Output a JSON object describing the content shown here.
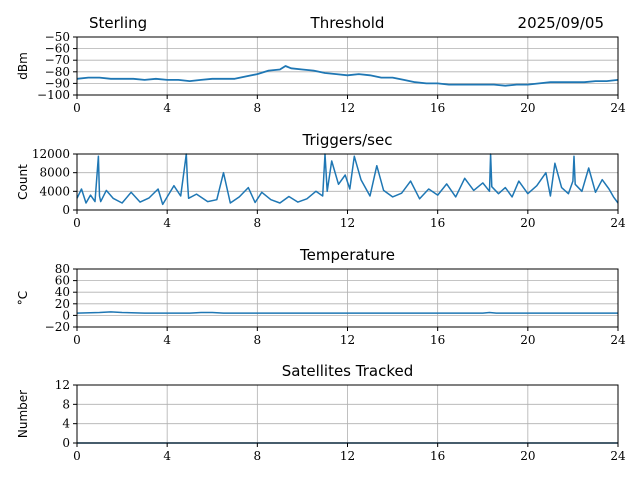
{
  "header": {
    "station": "Sterling",
    "date": "2025/09/05"
  },
  "colors": {
    "series": "#1f77b4",
    "grid": "#b0b0b0",
    "axis": "#000000"
  },
  "chart_data": [
    {
      "type": "line",
      "title": "Threshold",
      "ylabel": "dBm",
      "xlabel": "",
      "xlim": [
        0,
        24
      ],
      "ylim": [
        -100,
        -50
      ],
      "xticks": [
        0,
        4,
        8,
        12,
        16,
        20,
        24
      ],
      "yticks": [
        -100,
        -90,
        -80,
        -70,
        -60,
        -50
      ],
      "ytick_labels": [
        "−100",
        "−90",
        "−80",
        "−70",
        "−60",
        "−50"
      ],
      "grid": true,
      "series": [
        {
          "x": [
            0,
            0.5,
            1,
            1.5,
            2,
            2.5,
            3,
            3.5,
            4,
            4.5,
            5,
            5.5,
            6,
            6.5,
            7,
            7.5,
            8,
            8.5,
            9,
            9.25,
            9.5,
            10,
            10.5,
            11,
            11.5,
            12,
            12.5,
            13,
            13.5,
            14,
            14.5,
            15,
            15.5,
            16,
            16.5,
            17,
            17.5,
            18,
            18.5,
            19,
            19.5,
            20,
            20.5,
            21,
            21.5,
            22,
            22.5,
            23,
            23.5,
            24
          ],
          "y": [
            -86,
            -85,
            -85,
            -86,
            -86,
            -86,
            -87,
            -86,
            -87,
            -87,
            -88,
            -87,
            -86,
            -86,
            -86,
            -84,
            -82,
            -79,
            -78,
            -75,
            -77,
            -78,
            -79,
            -81,
            -82,
            -83,
            -82,
            -83,
            -85,
            -85,
            -87,
            -89,
            -90,
            -90,
            -91,
            -91,
            -91,
            -91,
            -91,
            -92,
            -91,
            -91,
            -90,
            -89,
            -89,
            -89,
            -89,
            -88,
            -88,
            -87
          ]
        }
      ]
    },
    {
      "type": "line",
      "title": "Triggers/sec",
      "ylabel": "Count",
      "xlabel": "",
      "xlim": [
        0,
        24
      ],
      "ylim": [
        0,
        12000
      ],
      "xticks": [
        0,
        4,
        8,
        12,
        16,
        20,
        24
      ],
      "yticks": [
        0,
        4000,
        8000,
        12000
      ],
      "ytick_labels": [
        "0",
        "4000",
        "8000",
        "12000"
      ],
      "grid": true,
      "series": [
        {
          "x": [
            0,
            0.2,
            0.4,
            0.6,
            0.8,
            0.95,
            1.0,
            1.05,
            1.3,
            1.6,
            2.0,
            2.4,
            2.8,
            3.2,
            3.6,
            3.8,
            4.0,
            4.3,
            4.6,
            4.85,
            4.9,
            4.95,
            5.3,
            5.8,
            6.2,
            6.5,
            6.8,
            7.2,
            7.6,
            7.9,
            8.2,
            8.6,
            9.0,
            9.4,
            9.8,
            10.2,
            10.6,
            10.9,
            11.0,
            11.1,
            11.3,
            11.6,
            11.9,
            12.1,
            12.3,
            12.6,
            13.0,
            13.3,
            13.6,
            14.0,
            14.4,
            14.8,
            15.2,
            15.6,
            16.0,
            16.4,
            16.8,
            17.2,
            17.6,
            18.0,
            18.3,
            18.35,
            18.4,
            18.7,
            19.0,
            19.3,
            19.6,
            20.0,
            20.4,
            20.8,
            21.0,
            21.2,
            21.5,
            21.8,
            22.0,
            22.05,
            22.1,
            22.4,
            22.7,
            23.0,
            23.3,
            23.6,
            23.8,
            24.0
          ],
          "y": [
            2500,
            4500,
            1500,
            3200,
            1800,
            11500,
            3000,
            1800,
            4200,
            2500,
            1500,
            3800,
            1700,
            2600,
            4500,
            1200,
            2800,
            5200,
            3000,
            12000,
            6000,
            2500,
            3400,
            1800,
            2200,
            8000,
            1500,
            2800,
            4800,
            1600,
            3800,
            2200,
            1500,
            2900,
            1700,
            2400,
            4000,
            3000,
            12000,
            4000,
            10500,
            5500,
            7500,
            4500,
            11500,
            6500,
            3000,
            9500,
            4200,
            2800,
            3600,
            6200,
            2400,
            4500,
            3200,
            5600,
            2800,
            6800,
            4200,
            5800,
            4000,
            12000,
            5000,
            3500,
            4800,
            2800,
            6200,
            3500,
            5200,
            8000,
            3000,
            10000,
            4800,
            3500,
            6200,
            11500,
            5500,
            4000,
            9000,
            3800,
            6500,
            4500,
            2800,
            1500
          ]
        }
      ]
    },
    {
      "type": "line",
      "title": "Temperature",
      "ylabel": "°C",
      "xlabel": "",
      "xlim": [
        0,
        24
      ],
      "ylim": [
        -20,
        80
      ],
      "xticks": [
        0,
        4,
        8,
        12,
        16,
        20,
        24
      ],
      "yticks": [
        -20,
        0,
        20,
        40,
        60,
        80
      ],
      "ytick_labels": [
        "−20",
        "0",
        "20",
        "40",
        "60",
        "80"
      ],
      "grid": true,
      "series": [
        {
          "x": [
            0,
            1,
            1.5,
            2,
            3,
            4,
            5,
            5.5,
            6,
            6.5,
            7,
            8,
            10,
            12,
            14,
            16,
            18,
            18.3,
            18.6,
            19,
            20,
            22,
            24
          ],
          "y": [
            4,
            5,
            6,
            5,
            4,
            4,
            4,
            5,
            5,
            4,
            4,
            4,
            4,
            4,
            4,
            4,
            4,
            5,
            4,
            4,
            4,
            4,
            4
          ]
        }
      ]
    },
    {
      "type": "line",
      "title": "Satellites Tracked",
      "ylabel": "Number",
      "xlabel": "",
      "xlim": [
        0,
        24
      ],
      "ylim": [
        0,
        12
      ],
      "xticks": [
        0,
        4,
        8,
        12,
        16,
        20,
        24
      ],
      "yticks": [
        0,
        4,
        8,
        12
      ],
      "ytick_labels": [
        "0",
        "4",
        "8",
        "12"
      ],
      "grid": true,
      "series": [
        {
          "x": [
            0,
            24
          ],
          "y": [
            0,
            0
          ]
        }
      ]
    }
  ]
}
